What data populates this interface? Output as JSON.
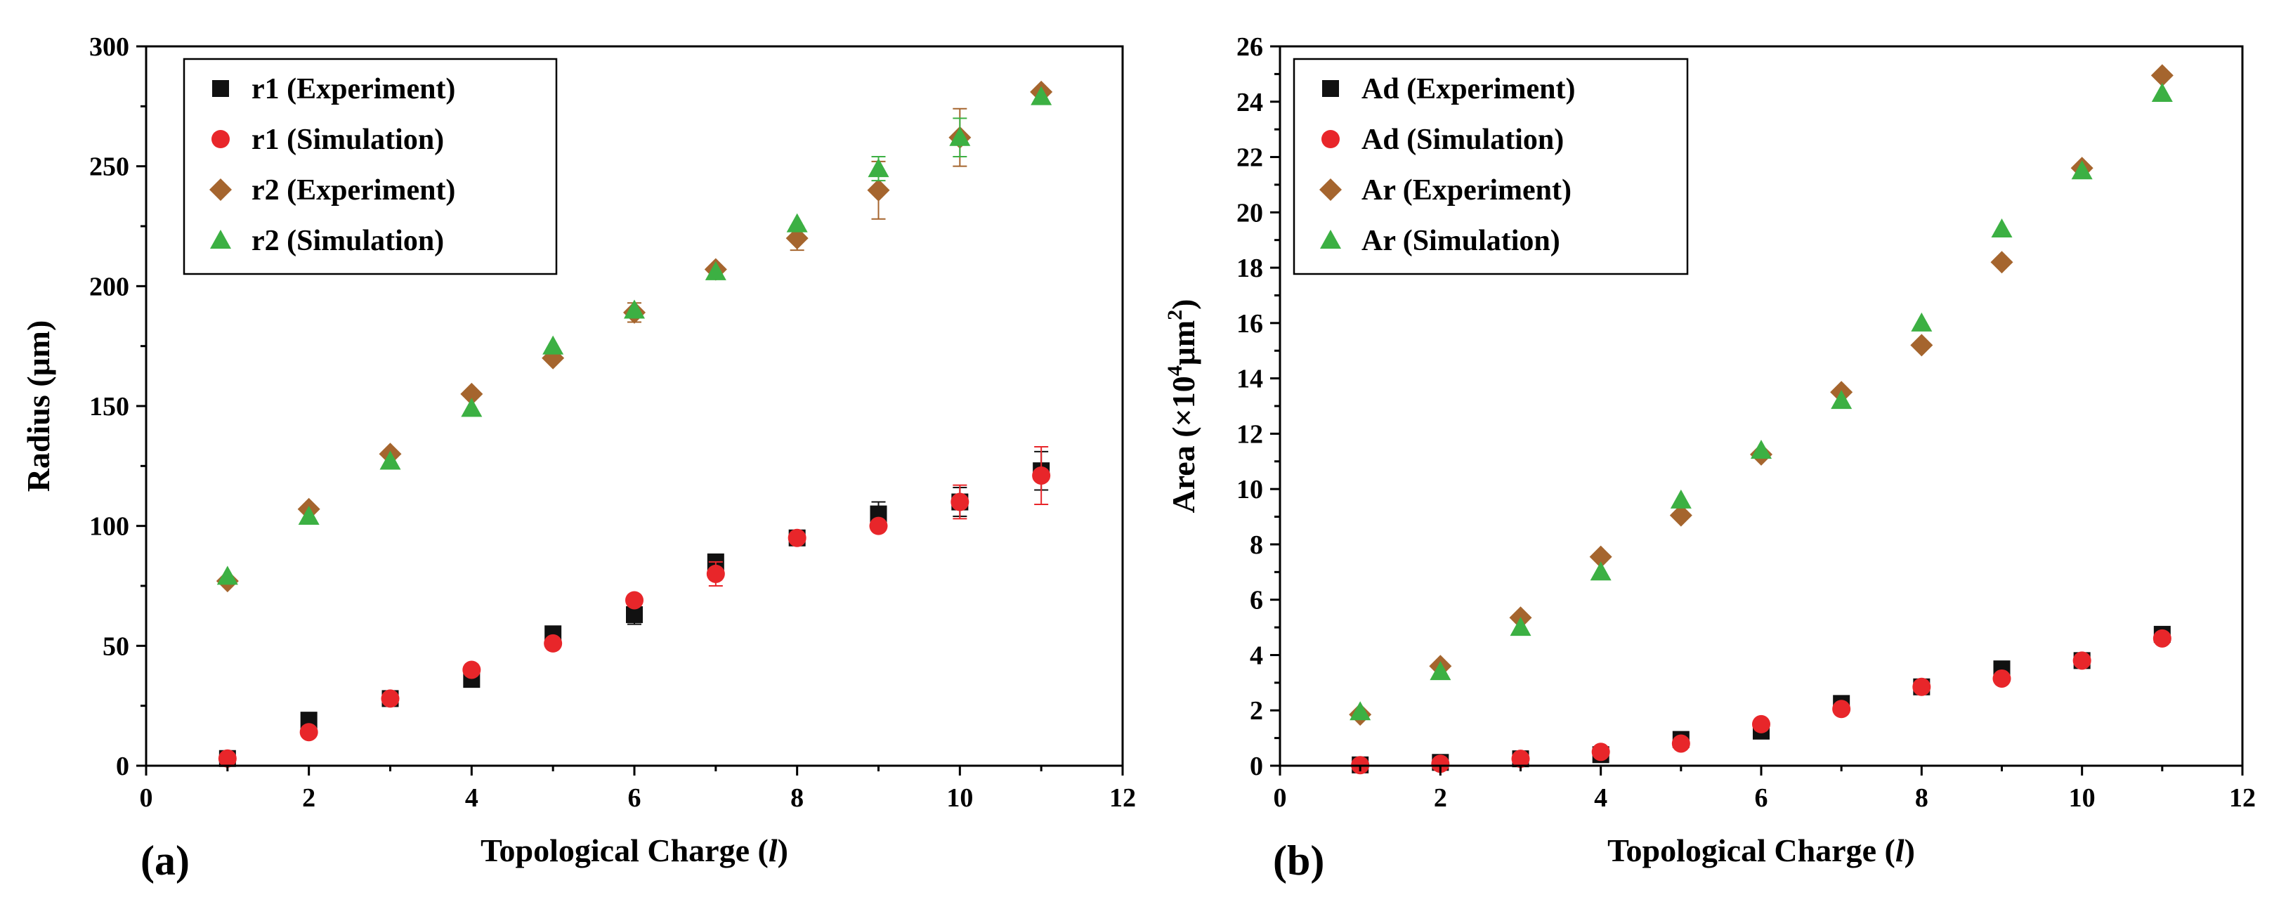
{
  "chart_data": [
    {
      "type": "scatter",
      "panel_label": "(a)",
      "xlabel": {
        "pre": "Topological Charge (",
        "var": "l",
        "post": ")"
      },
      "ylabel": {
        "text": "Radius (μm)"
      },
      "xlim": [
        0,
        12
      ],
      "ylim": [
        0,
        300
      ],
      "xticks": [
        0,
        2,
        4,
        6,
        8,
        10,
        12
      ],
      "xtick_labels": [
        "0",
        "2",
        "4",
        "6",
        "8",
        "10",
        "12"
      ],
      "yticks": [
        0,
        50,
        100,
        150,
        200,
        250,
        300
      ],
      "ytick_labels": [
        "0",
        "50",
        "100",
        "150",
        "200",
        "250",
        "300"
      ],
      "legend_position": "top-left",
      "series": [
        {
          "name": "r1 (Experiment)",
          "marker": "square",
          "color": "#111111",
          "x": [
            1,
            2,
            3,
            4,
            5,
            6,
            7,
            8,
            9,
            10,
            11
          ],
          "y": [
            3,
            19,
            28,
            36,
            55,
            63,
            85,
            95,
            105,
            110,
            123
          ],
          "err": [
            2,
            2,
            2,
            2,
            2,
            4,
            2,
            2,
            5,
            6,
            8
          ]
        },
        {
          "name": "r1 (Simulation)",
          "marker": "circle",
          "color": "#e8262a",
          "x": [
            1,
            2,
            3,
            4,
            5,
            6,
            7,
            8,
            9,
            10,
            11
          ],
          "y": [
            3,
            14,
            28,
            40,
            51,
            69,
            80,
            95,
            100,
            110,
            121
          ],
          "err": [
            0,
            0,
            0,
            0,
            0,
            0,
            5,
            0,
            0,
            7,
            12
          ]
        },
        {
          "name": "r2 (Experiment)",
          "marker": "diamond",
          "color": "#a5652e",
          "x": [
            1,
            2,
            3,
            4,
            5,
            6,
            7,
            8,
            9,
            10,
            11
          ],
          "y": [
            77,
            107,
            130,
            155,
            170,
            189,
            207,
            220,
            240,
            262,
            281
          ],
          "err": [
            0,
            0,
            0,
            0,
            0,
            4,
            0,
            5,
            12,
            12,
            0
          ]
        },
        {
          "name": "r2 (Simulation)",
          "marker": "triangle",
          "color": "#3cb043",
          "x": [
            1,
            2,
            3,
            4,
            5,
            6,
            7,
            8,
            9,
            10,
            11
          ],
          "y": [
            79,
            104,
            127,
            149,
            175,
            190,
            206,
            226,
            249,
            262,
            279
          ],
          "err": [
            0,
            0,
            0,
            0,
            0,
            0,
            0,
            0,
            5,
            8,
            0
          ]
        }
      ]
    },
    {
      "type": "scatter",
      "panel_label": "(b)",
      "xlabel": {
        "pre": "Topological Charge (",
        "var": "l",
        "post": ")"
      },
      "ylabel": {
        "pre": "Area (×10",
        "sup1": "4",
        "mid": "μm",
        "sup2": "2",
        "post": ")"
      },
      "xlim": [
        0,
        12
      ],
      "ylim": [
        0,
        26
      ],
      "xticks": [
        0,
        2,
        4,
        6,
        8,
        10,
        12
      ],
      "xtick_labels": [
        "0",
        "2",
        "4",
        "6",
        "8",
        "10",
        "12"
      ],
      "yticks": [
        0,
        2,
        4,
        6,
        8,
        10,
        12,
        14,
        16,
        18,
        20,
        22,
        24,
        26
      ],
      "ytick_labels": [
        "0",
        "2",
        "4",
        "6",
        "8",
        "10",
        "12",
        "14",
        "16",
        "18",
        "20",
        "22",
        "24",
        "26"
      ],
      "legend_position": "top-left",
      "series": [
        {
          "name": "Ad (Experiment)",
          "marker": "square",
          "color": "#111111",
          "x": [
            1,
            2,
            3,
            4,
            5,
            6,
            7,
            8,
            9,
            10,
            11
          ],
          "y": [
            0.03,
            0.12,
            0.25,
            0.4,
            0.95,
            1.25,
            2.25,
            2.85,
            3.5,
            3.8,
            4.75
          ]
        },
        {
          "name": "Ad (Simulation)",
          "marker": "circle",
          "color": "#e8262a",
          "x": [
            1,
            2,
            3,
            4,
            5,
            6,
            7,
            8,
            9,
            10,
            11
          ],
          "y": [
            0.02,
            0.07,
            0.25,
            0.5,
            0.8,
            1.5,
            2.05,
            2.85,
            3.15,
            3.8,
            4.6
          ]
        },
        {
          "name": "Ar (Experiment)",
          "marker": "diamond",
          "color": "#a5652e",
          "x": [
            1,
            2,
            3,
            4,
            5,
            6,
            7,
            8,
            9,
            10,
            11
          ],
          "y": [
            1.85,
            3.6,
            5.35,
            7.55,
            9.05,
            11.25,
            13.5,
            15.2,
            18.2,
            21.6,
            24.95
          ]
        },
        {
          "name": "Ar (Simulation)",
          "marker": "triangle",
          "color": "#3cb043",
          "x": [
            1,
            2,
            3,
            4,
            5,
            6,
            7,
            8,
            9,
            10,
            11
          ],
          "y": [
            1.95,
            3.4,
            5.0,
            7.0,
            9.6,
            11.4,
            13.2,
            16.0,
            19.4,
            21.5,
            24.3
          ]
        }
      ]
    }
  ]
}
